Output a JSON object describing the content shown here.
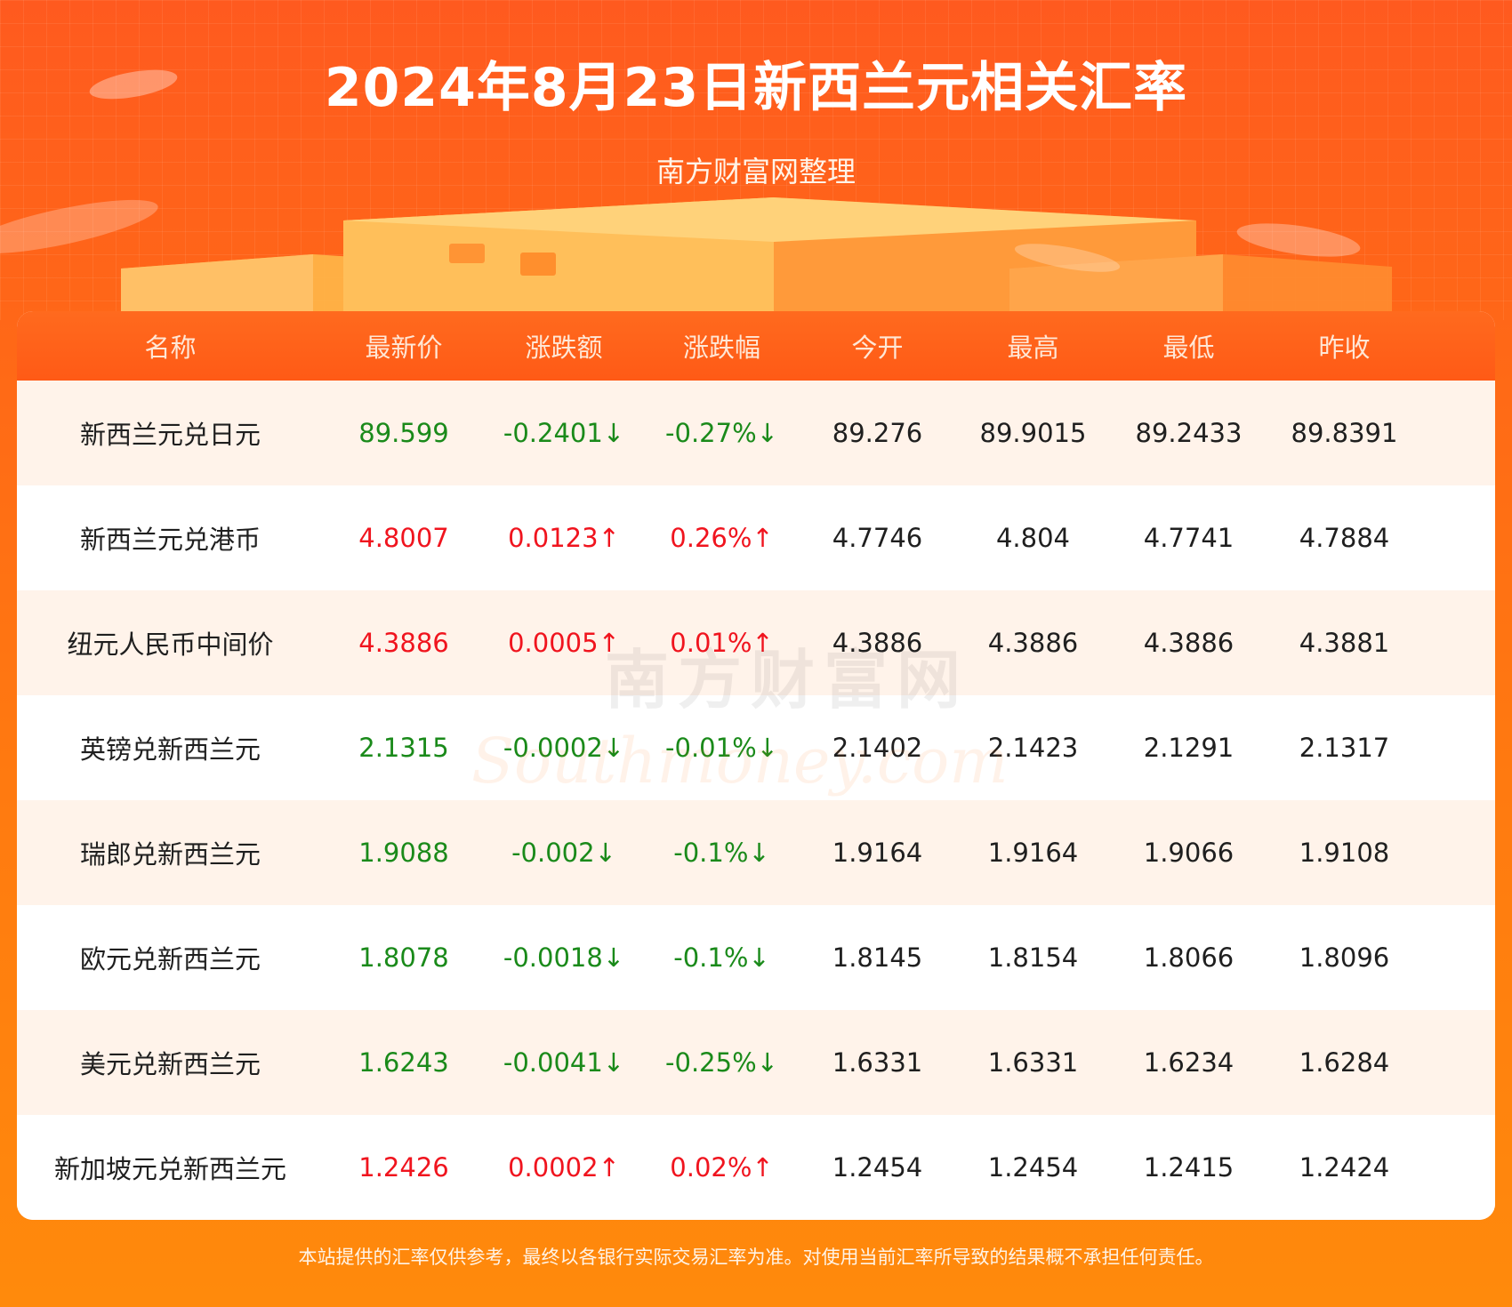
{
  "header": {
    "title": "2024年8月23日新西兰元相关汇率",
    "subtitle": "南方财富网整理"
  },
  "watermark": {
    "cn": "南方财富网",
    "en": "Southmoney.com"
  },
  "table": {
    "columns": [
      "名称",
      "最新价",
      "涨跌额",
      "涨跌幅",
      "今开",
      "最高",
      "最低",
      "昨收"
    ],
    "rows": [
      {
        "name": "新西兰元兑日元",
        "latest": "89.599",
        "change": "-0.2401↓",
        "pct": "-0.27%↓",
        "open": "89.276",
        "high": "89.9015",
        "low": "89.2433",
        "prev": "89.8391",
        "trend": "down"
      },
      {
        "name": "新西兰元兑港币",
        "latest": "4.8007",
        "change": "0.0123↑",
        "pct": "0.26%↑",
        "open": "4.7746",
        "high": "4.804",
        "low": "4.7741",
        "prev": "4.7884",
        "trend": "up"
      },
      {
        "name": "纽元人民币中间价",
        "latest": "4.3886",
        "change": "0.0005↑",
        "pct": "0.01%↑",
        "open": "4.3886",
        "high": "4.3886",
        "low": "4.3886",
        "prev": "4.3881",
        "trend": "up"
      },
      {
        "name": "英镑兑新西兰元",
        "latest": "2.1315",
        "change": "-0.0002↓",
        "pct": "-0.01%↓",
        "open": "2.1402",
        "high": "2.1423",
        "low": "2.1291",
        "prev": "2.1317",
        "trend": "down"
      },
      {
        "name": "瑞郎兑新西兰元",
        "latest": "1.9088",
        "change": "-0.002↓",
        "pct": "-0.1%↓",
        "open": "1.9164",
        "high": "1.9164",
        "low": "1.9066",
        "prev": "1.9108",
        "trend": "down"
      },
      {
        "name": "欧元兑新西兰元",
        "latest": "1.8078",
        "change": "-0.0018↓",
        "pct": "-0.1%↓",
        "open": "1.8145",
        "high": "1.8154",
        "low": "1.8066",
        "prev": "1.8096",
        "trend": "down"
      },
      {
        "name": "美元兑新西兰元",
        "latest": "1.6243",
        "change": "-0.0041↓",
        "pct": "-0.25%↓",
        "open": "1.6331",
        "high": "1.6331",
        "low": "1.6234",
        "prev": "1.6284",
        "trend": "down"
      },
      {
        "name": "新加坡元兑新西兰元",
        "latest": "1.2426",
        "change": "0.0002↑",
        "pct": "0.02%↑",
        "open": "1.2454",
        "high": "1.2454",
        "low": "1.2415",
        "prev": "1.2424",
        "trend": "up"
      }
    ]
  },
  "footer": {
    "disclaimer": "本站提供的汇率仅供参考，最终以各银行实际交易汇率为准。对使用当前汇率所导致的结果概不承担任何责任。"
  },
  "colors": {
    "up": "#f0141e",
    "down": "#1a8a1a",
    "accent": "#ff5a16"
  }
}
